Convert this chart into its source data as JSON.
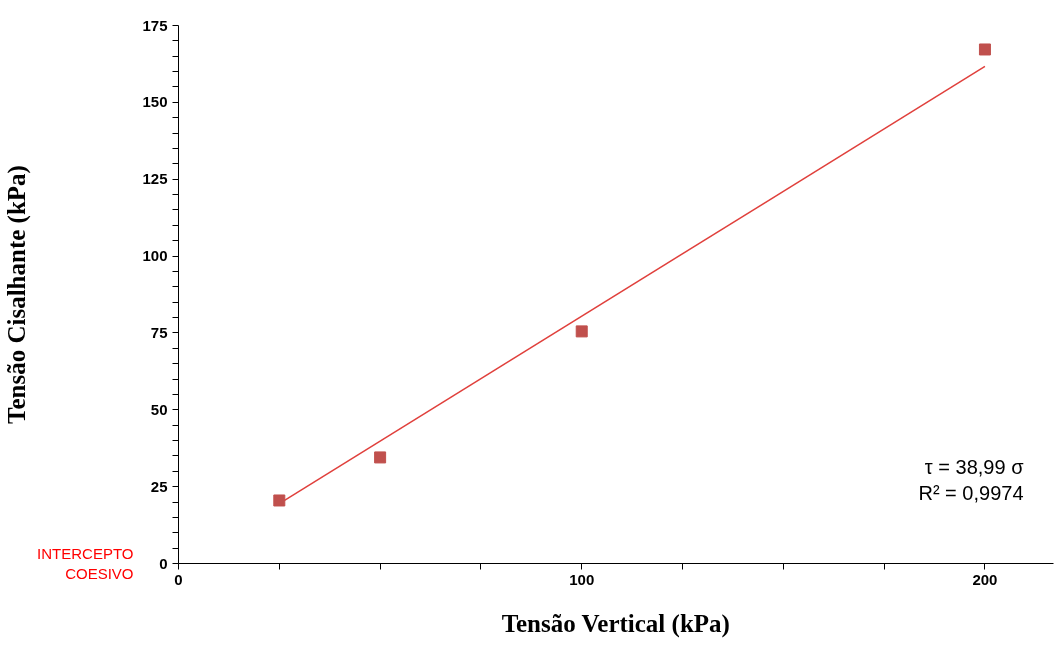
{
  "chart_data": {
    "type": "scatter",
    "xlabel": "Tensão Vertical (kPa)",
    "ylabel": "Tensão Cisalhante (kPa)",
    "xlim": [
      0,
      217
    ],
    "ylim": [
      0,
      175
    ],
    "xticks": [
      0,
      {
        "value": 25,
        "label": null
      },
      {
        "value": 50,
        "label": null
      },
      {
        "value": 75,
        "label": null
      },
      100,
      {
        "value": 125,
        "label": null
      },
      {
        "value": 150,
        "label": null
      },
      {
        "value": 175,
        "label": null
      },
      200
    ],
    "yticks": [
      0,
      {
        "value": 5,
        "label": null
      },
      {
        "value": 10,
        "label": null
      },
      {
        "value": 15,
        "label": null
      },
      {
        "value": 20,
        "label": null
      },
      25,
      {
        "value": 30,
        "label": null
      },
      {
        "value": 35,
        "label": null
      },
      {
        "value": 40,
        "label": null
      },
      {
        "value": 45,
        "label": null
      },
      50,
      {
        "value": 55,
        "label": null
      },
      {
        "value": 60,
        "label": null
      },
      {
        "value": 65,
        "label": null
      },
      {
        "value": 70,
        "label": null
      },
      75,
      {
        "value": 80,
        "label": null
      },
      {
        "value": 85,
        "label": null
      },
      {
        "value": 90,
        "label": null
      },
      {
        "value": 95,
        "label": null
      },
      100,
      {
        "value": 105,
        "label": null
      },
      {
        "value": 110,
        "label": null
      },
      {
        "value": 115,
        "label": null
      },
      {
        "value": 120,
        "label": null
      },
      125,
      {
        "value": 130,
        "label": null
      },
      {
        "value": 135,
        "label": null
      },
      {
        "value": 140,
        "label": null
      },
      {
        "value": 145,
        "label": null
      },
      150,
      {
        "value": 155,
        "label": null
      },
      {
        "value": 160,
        "label": null
      },
      {
        "value": 165,
        "label": null
      },
      {
        "value": 170,
        "label": null
      },
      175
    ],
    "grid": false,
    "series": [
      {
        "type": "line",
        "color": "#e0403c",
        "x": [
          25,
          200
        ],
        "values": [
          19.5,
          161.7
        ],
        "line_style": "solid"
      },
      {
        "color": "#c0504d",
        "x": [
          25,
          50,
          100,
          200
        ],
        "values": [
          20.5,
          34.5,
          75.5,
          167.2
        ],
        "marker": "square"
      }
    ],
    "annotations": [
      "τ = 38,99 σ",
      "R² = 0,9974",
      "INTERCEPTO COESIVO"
    ]
  }
}
